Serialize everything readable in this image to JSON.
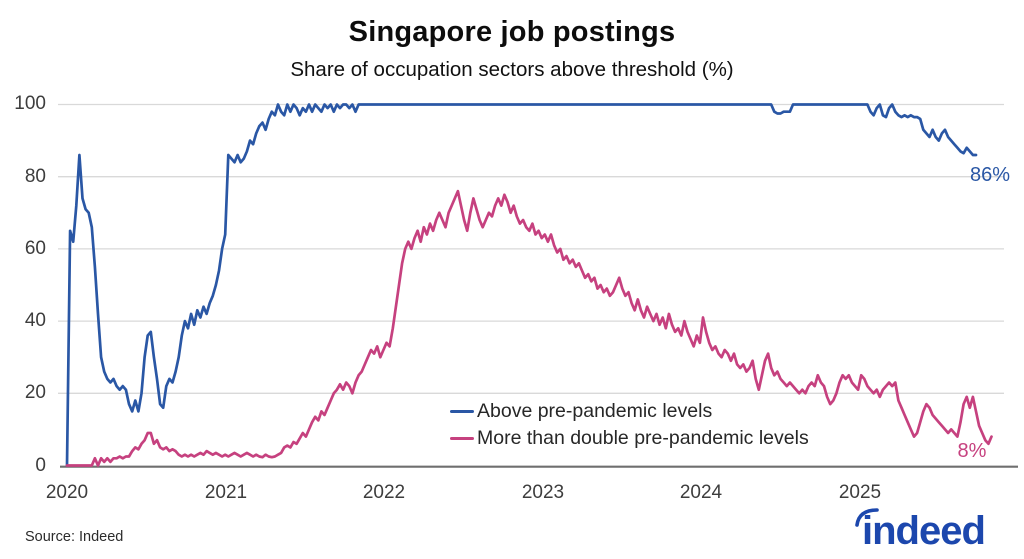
{
  "title": "Singapore job postings",
  "subtitle": "Share of occupation sectors above threshold (%)",
  "source": "Source: Indeed",
  "logo": {
    "brand": "indeed",
    "color": "#1c47ad"
  },
  "colors": {
    "blue_line": "#2a57a5",
    "pink_line": "#c6417f",
    "gridline": "#d9d9d9",
    "axis_line": "#6f6f6f",
    "tick_text": "#3d3d3d"
  },
  "chart_data": {
    "type": "line",
    "title": "Singapore job postings",
    "subtitle": "Share of occupation sectors above threshold (%)",
    "x_unit": "week index starting January 2020, 52 weeks per year",
    "x_axis": {
      "tick_labels": [
        "2020",
        "2021",
        "2022",
        "2023",
        "2024",
        "2025"
      ],
      "weeks_per_year": 52
    },
    "y_axis": {
      "ticks": [
        100,
        80,
        60,
        40,
        20,
        0
      ],
      "tick_labels": [
        "100",
        "80",
        "60",
        "40",
        "20",
        "0"
      ],
      "range": [
        0,
        100
      ],
      "grid": true
    },
    "legend_position": "lower-center-left",
    "series": [
      {
        "name": "Above pre-pandemic levels",
        "color": "#2a57a5",
        "end_label": "86%",
        "values": [
          0,
          65,
          62,
          72,
          86,
          74,
          71,
          70,
          66,
          55,
          42,
          30,
          26,
          24,
          23,
          24,
          22,
          21,
          22,
          21,
          17,
          15,
          18,
          15,
          20,
          30,
          36,
          37,
          30,
          24,
          17,
          16,
          22,
          24,
          23,
          26,
          30,
          36,
          40,
          38,
          42,
          39,
          43,
          41,
          44,
          42,
          45,
          47,
          50,
          54,
          60,
          64,
          86,
          85,
          84,
          86,
          84,
          85,
          87,
          90,
          89,
          92,
          94,
          95,
          93,
          96,
          98,
          97,
          100,
          98,
          97,
          100,
          98,
          100,
          99,
          97,
          99,
          98,
          100,
          98,
          100,
          99,
          98,
          100,
          99,
          100,
          98,
          100,
          99,
          100,
          100,
          99,
          100,
          98,
          100,
          100,
          100,
          100,
          100,
          100,
          100,
          100,
          100,
          100,
          100,
          100,
          100,
          100,
          100,
          100,
          100,
          100,
          100,
          100,
          100,
          100,
          100,
          100,
          100,
          100,
          100,
          100,
          100,
          100,
          100,
          100,
          100,
          100,
          100,
          100,
          100,
          100,
          100,
          100,
          100,
          100,
          100,
          100,
          100,
          100,
          100,
          100,
          100,
          100,
          100,
          100,
          100,
          100,
          100,
          100,
          100,
          100,
          100,
          100,
          100,
          100,
          100,
          100,
          100,
          100,
          100,
          100,
          100,
          100,
          100,
          100,
          100,
          100,
          100,
          100,
          100,
          100,
          100,
          100,
          100,
          100,
          100,
          100,
          100,
          100,
          100,
          100,
          100,
          100,
          100,
          100,
          100,
          100,
          100,
          100,
          100,
          100,
          100,
          100,
          100,
          100,
          100,
          100,
          100,
          100,
          100,
          100,
          100,
          100,
          100,
          100,
          100,
          100,
          100,
          100,
          100,
          100,
          100,
          100,
          100,
          100,
          100,
          100,
          100,
          100,
          100,
          100,
          100,
          100,
          100,
          100,
          100,
          100,
          98,
          97.5,
          97.5,
          98,
          98,
          98,
          100,
          100,
          100,
          100,
          100,
          100,
          100,
          100,
          100,
          100,
          100,
          100,
          100,
          100,
          100,
          100,
          100,
          100,
          100,
          100,
          100,
          100,
          100,
          100,
          100,
          98,
          97,
          99,
          100,
          97,
          96.5,
          99,
          100,
          98,
          97,
          96.5,
          97,
          96.5,
          97,
          96.5,
          96.5,
          96,
          93,
          92,
          91,
          93,
          91,
          90,
          92,
          93,
          91,
          90,
          89,
          88,
          87,
          86.5,
          88,
          87,
          86,
          86
        ]
      },
      {
        "name": "More than double pre-pandemic levels",
        "color": "#c6417f",
        "end_label": "8%",
        "values": [
          0,
          0,
          0,
          0,
          0,
          0,
          0,
          0,
          0,
          2,
          0,
          2,
          1,
          2,
          1,
          2,
          2,
          2.5,
          2,
          2.5,
          2.5,
          4,
          5,
          4.5,
          6,
          7,
          9,
          9,
          6,
          7,
          5,
          4.5,
          5,
          4,
          4.5,
          4,
          3,
          2.5,
          3,
          2.5,
          3,
          2.5,
          3,
          3.5,
          3,
          4,
          3.5,
          3,
          3.5,
          3,
          2.5,
          3,
          2.5,
          3,
          3.5,
          3,
          2.5,
          3,
          3.5,
          3,
          2.5,
          3,
          2.5,
          2.3,
          3,
          2.5,
          2.3,
          2.5,
          3,
          3.5,
          5,
          5.5,
          5,
          6.5,
          6,
          7.5,
          9,
          8,
          10,
          12,
          13.5,
          12.5,
          15,
          14,
          16,
          18,
          20,
          21,
          22.5,
          21,
          23,
          22,
          20,
          23,
          25,
          26,
          28,
          30,
          32,
          31,
          33,
          30,
          32,
          34,
          33,
          38,
          44,
          50,
          56,
          60,
          62,
          60,
          63,
          65,
          62,
          66,
          64,
          67,
          65,
          68,
          70,
          68,
          66,
          70,
          72,
          74,
          76,
          72,
          68,
          65,
          70,
          74,
          71,
          68,
          66,
          68,
          70,
          69,
          72,
          74,
          72,
          75,
          73,
          70,
          72,
          69,
          67,
          68,
          66,
          65,
          67,
          64,
          65,
          63,
          64,
          62,
          64,
          61,
          59,
          60,
          57,
          58,
          56,
          57,
          55,
          56,
          54,
          52,
          53,
          51,
          52,
          49,
          50,
          48,
          49,
          47,
          48,
          50,
          52,
          49,
          47,
          48,
          45,
          43,
          46,
          43,
          41,
          44,
          42,
          40,
          42,
          39,
          41,
          38,
          42,
          39,
          37,
          38,
          36,
          40,
          37,
          35,
          33,
          36,
          34,
          41,
          37,
          34,
          32,
          33,
          31,
          30,
          32,
          31,
          29,
          31,
          28,
          27,
          28,
          26,
          27,
          29,
          24,
          21,
          25,
          29,
          31,
          27,
          25,
          26,
          24,
          23,
          22,
          23,
          22,
          21,
          20,
          21,
          20,
          22,
          23,
          22,
          25,
          23,
          22,
          19,
          17,
          18,
          20,
          23,
          25,
          24,
          25,
          23,
          22,
          21,
          25,
          24,
          22,
          21,
          20,
          21,
          19,
          21,
          22,
          23,
          22,
          23,
          18,
          16,
          14,
          12,
          10,
          8,
          9,
          12,
          15,
          17,
          16,
          14,
          13,
          12,
          11,
          10,
          9,
          10,
          9,
          8,
          12,
          17,
          19,
          16,
          19,
          15,
          11,
          9,
          7,
          6,
          8
        ]
      }
    ]
  }
}
